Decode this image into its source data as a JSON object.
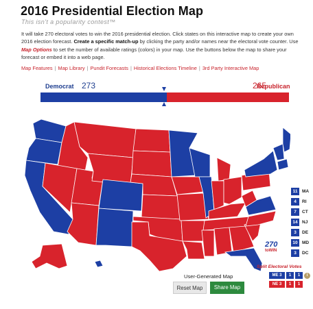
{
  "header": {
    "title": "2016 Presidential Election Map",
    "subtitle": "This isn't a popularity contest™"
  },
  "intro": {
    "p1": "It will take 270 electoral votes to win the 2016 presidential election. Click states on this interactive map to create your own 2016 election forecast.",
    "bold": "Create a specific match-up",
    "p2": "by clicking the party and/or names near the electoral vote counter. Use",
    "options": "Map Options",
    "p3": "to set the number of available ratings (colors) in your map. Use the buttons below the map to share your forecast or embed it into a web page."
  },
  "nav_links": [
    "Map Features",
    "Map Library",
    "Pundit Forecasts",
    "Historical Elections Timeline",
    "3rd Party Interactive Map"
  ],
  "counter": {
    "dem_label": "Democrat",
    "dem_votes": "273",
    "rep_label": "Republican",
    "rep_votes": "265",
    "dem_total": 273,
    "rep_total": 265,
    "total": 538
  },
  "colors": {
    "dem": "#1d3fa4",
    "rep": "#d8232c",
    "share": "#2d8a3e"
  },
  "small_states": [
    {
      "votes": "11",
      "abbr": "MA"
    },
    {
      "votes": "4",
      "abbr": "RI"
    },
    {
      "votes": "7",
      "abbr": "CT"
    },
    {
      "votes": "14",
      "abbr": "NJ"
    },
    {
      "votes": "3",
      "abbr": "DE"
    },
    {
      "votes": "10",
      "abbr": "MD"
    },
    {
      "votes": "3",
      "abbr": "DC"
    }
  ],
  "logo": {
    "num": "270",
    "text": "toWIN"
  },
  "split": {
    "title": "Split Electoral Votes",
    "info_icon": "i",
    "me": {
      "label": "ME 3",
      "v1": "1",
      "v2": "1"
    },
    "ne": {
      "label": "NE 3",
      "v1": "1",
      "v2": "1"
    }
  },
  "footer": {
    "ugm": "User-Generated Map",
    "reset": "Reset Map",
    "share": "Share Map"
  }
}
